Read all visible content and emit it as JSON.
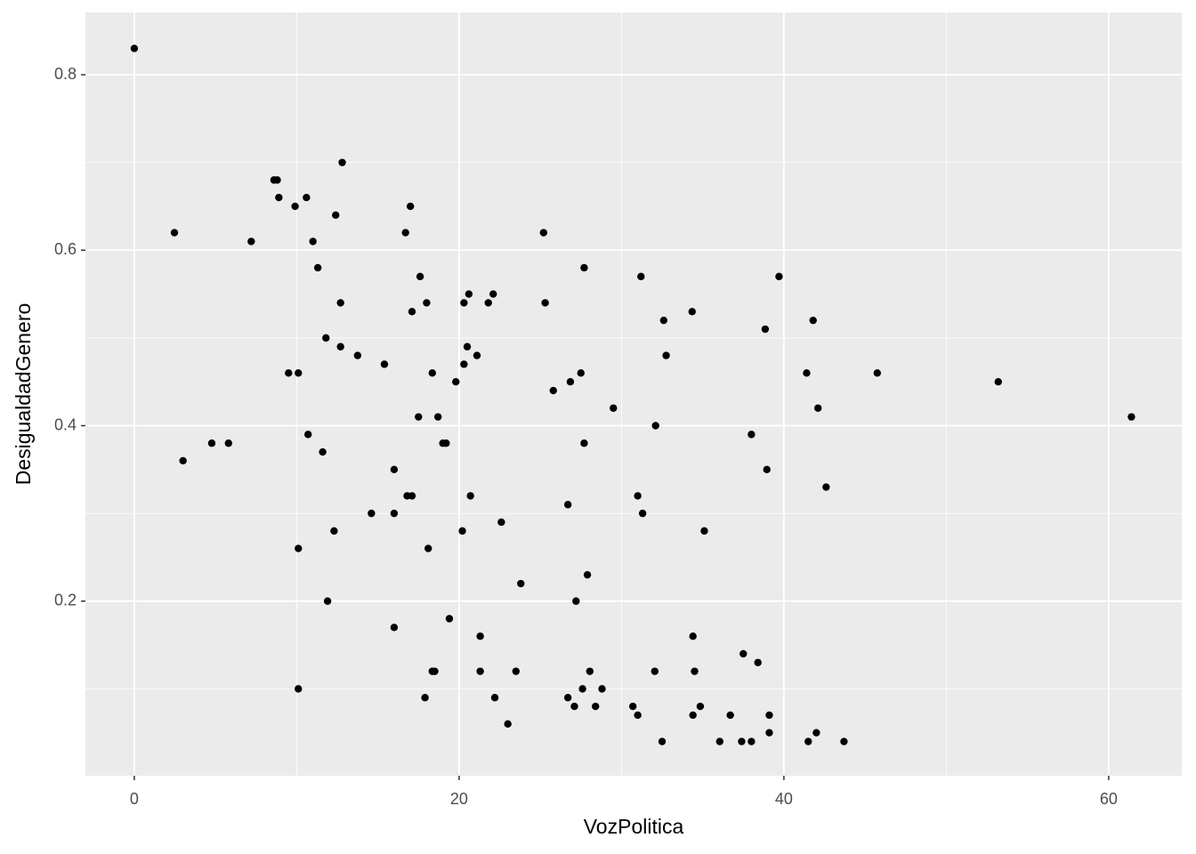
{
  "chart_data": {
    "type": "scatter",
    "x_label": "VozPolitica",
    "y_label": "DesigualdadGenero",
    "color": "#000000",
    "panel_color": "#ebebeb",
    "grid": true,
    "xlim": [
      -3.01,
      64.5
    ],
    "ylim": [
      0.001,
      0.871
    ],
    "xticks": [
      0,
      20,
      40,
      60
    ],
    "yticks": [
      0.2,
      0.4,
      0.6,
      0.8
    ],
    "x_minor_grid": [
      10,
      30,
      50
    ],
    "y_minor_grid": [
      0.1,
      0.3,
      0.5,
      0.7
    ],
    "x": [
      0,
      2.47,
      3.0,
      4.77,
      5.8,
      7.2,
      8.6,
      8.8,
      8.9,
      9.5,
      9.9,
      10.1,
      10.1,
      10.1,
      10.6,
      10.7,
      11.0,
      11.3,
      11.6,
      11.8,
      11.9,
      12.3,
      12.4,
      12.7,
      12.7,
      12.8,
      13.75,
      14.6,
      15.4,
      16.0,
      16.0,
      16.0,
      16.7,
      16.8,
      17.0,
      17.1,
      17.1,
      17.5,
      17.6,
      17.9,
      18.0,
      18.1,
      18.35,
      18.35,
      18.5,
      18.7,
      19.0,
      19.2,
      19.4,
      19.8,
      20.2,
      20.3,
      20.3,
      20.5,
      20.6,
      20.7,
      21.1,
      21.3,
      21.3,
      21.8,
      22.1,
      22.2,
      22.6,
      23.0,
      23.5,
      23.8,
      25.2,
      25.3,
      25.8,
      26.7,
      26.7,
      26.85,
      27.1,
      27.2,
      27.5,
      27.6,
      27.7,
      27.7,
      27.9,
      28.05,
      28.4,
      28.8,
      29.5,
      30.7,
      31.0,
      31.0,
      31.2,
      31.3,
      32.05,
      32.1,
      32.6,
      32.5,
      32.75,
      34.35,
      34.4,
      34.4,
      34.5,
      34.85,
      35.1,
      36.05,
      36.7,
      37.4,
      37.5,
      38.0,
      38.0,
      38.4,
      38.85,
      38.95,
      39.1,
      39.1,
      39.7,
      41.4,
      41.5,
      41.8,
      42.0,
      42.1,
      42.6,
      43.7,
      45.75,
      53.2,
      61.4
    ],
    "y": [
      0.83,
      0.62,
      0.36,
      0.38,
      0.38,
      0.61,
      0.68,
      0.68,
      0.66,
      0.46,
      0.65,
      0.46,
      0.26,
      0.1,
      0.66,
      0.39,
      0.61,
      0.58,
      0.37,
      0.5,
      0.2,
      0.28,
      0.64,
      0.49,
      0.54,
      0.7,
      0.48,
      0.3,
      0.47,
      0.35,
      0.3,
      0.17,
      0.62,
      0.32,
      0.65,
      0.32,
      0.53,
      0.41,
      0.57,
      0.09,
      0.54,
      0.26,
      0.46,
      0.12,
      0.12,
      0.41,
      0.38,
      0.38,
      0.18,
      0.45,
      0.28,
      0.47,
      0.54,
      0.49,
      0.55,
      0.32,
      0.48,
      0.16,
      0.12,
      0.54,
      0.55,
      0.09,
      0.29,
      0.06,
      0.12,
      0.22,
      0.62,
      0.54,
      0.44,
      0.31,
      0.09,
      0.45,
      0.08,
      0.2,
      0.46,
      0.1,
      0.58,
      0.38,
      0.23,
      0.12,
      0.08,
      0.1,
      0.42,
      0.08,
      0.07,
      0.32,
      0.57,
      0.3,
      0.12,
      0.4,
      0.52,
      0.04,
      0.48,
      0.53,
      0.16,
      0.07,
      0.12,
      0.08,
      0.28,
      0.04,
      0.07,
      0.04,
      0.14,
      0.39,
      0.04,
      0.13,
      0.51,
      0.35,
      0.05,
      0.07,
      0.57,
      0.46,
      0.04,
      0.52,
      0.05,
      0.42,
      0.33,
      0.04,
      0.46,
      0.45,
      0.41
    ]
  }
}
